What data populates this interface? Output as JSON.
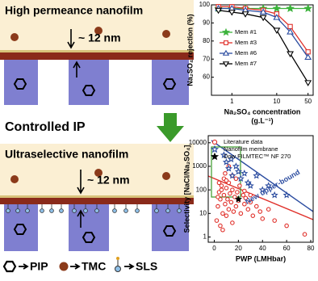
{
  "diagram": {
    "top_title": "High permeance nanofilm",
    "top_thickness": "~ 12 nm",
    "process": "Controlled IP",
    "bottom_title": "Ultraselective nanofilm",
    "bottom_thickness": "~ 12 nm",
    "legend": [
      "PIP",
      "TMC",
      "SLS"
    ]
  },
  "chart_data": [
    {
      "type": "line",
      "x_label": "Na₂SO₄ concentration",
      "x_unit": "(g.L⁻¹)",
      "y_label": "Na₂SO₄ rejection (%)",
      "x": [
        0.5,
        1,
        2,
        5,
        10,
        20,
        50
      ],
      "xscale": "log",
      "xlim": [
        0.35,
        65
      ],
      "xticks": [
        1,
        10,
        50
      ],
      "ylim": [
        50,
        100
      ],
      "yticks": [
        60,
        70,
        80,
        90,
        100
      ],
      "legend": "center left",
      "series": [
        {
          "name": "Mem #1",
          "color": "#3cb33c",
          "marker": "star",
          "filled": true,
          "values": [
            98,
            98,
            98,
            98,
            98,
            98,
            98
          ]
        },
        {
          "name": "Mem #3",
          "color": "#e0302a",
          "marker": "square",
          "filled": false,
          "values": [
            99,
            99,
            98,
            97,
            95,
            88,
            74
          ]
        },
        {
          "name": "Mem #6",
          "color": "#2b4ca0",
          "marker": "triangle",
          "filled": false,
          "values": [
            98,
            98,
            97,
            96,
            93,
            85,
            71
          ]
        },
        {
          "name": "Mem #7",
          "color": "#000000",
          "marker": "triangle-down",
          "filled": false,
          "values": [
            97,
            96,
            95,
            93,
            86,
            73,
            57
          ]
        }
      ]
    },
    {
      "type": "scatter",
      "x_label": "PWP (LMHbar)",
      "y_label": "Selectivity [NaCl/Na₂SO₄]",
      "xlim": [
        -5,
        82
      ],
      "xticks": [
        0,
        20,
        40,
        60,
        80
      ],
      "yscale": "log",
      "ylim": [
        0.6,
        20000
      ],
      "yticks": [
        1,
        10,
        100,
        1000,
        10000
      ],
      "legend": "upper left",
      "annotation": "New upper-bound",
      "series": [
        {
          "name": "Literature data",
          "color": "#e0302a",
          "marker": "circle",
          "filled": false,
          "x": [
            2,
            3,
            4,
            5,
            5,
            6,
            7,
            8,
            8,
            9,
            10,
            10,
            11,
            12,
            12,
            13,
            14,
            15,
            15,
            16,
            17,
            18,
            19,
            20,
            21,
            22,
            24,
            25,
            26,
            28,
            30,
            32,
            35,
            38,
            40,
            45,
            50,
            60,
            75,
            3,
            6,
            9,
            4,
            12,
            18,
            7,
            15,
            25,
            30,
            10
          ],
          "values": [
            5,
            20,
            80,
            3,
            40,
            150,
            10,
            60,
            300,
            25,
            8,
            120,
            40,
            200,
            15,
            70,
            30,
            100,
            400,
            12,
            50,
            20,
            80,
            35,
            150,
            10,
            60,
            25,
            45,
            15,
            30,
            8,
            20,
            12,
            6,
            15,
            5,
            3,
            1.3,
            50,
            100,
            500,
            200,
            1000,
            300,
            2,
            4,
            90,
            60,
            250
          ]
        },
        {
          "name": "Nanofilm membrane",
          "color": "#2b4ca0",
          "marker": "star",
          "filled": false,
          "x": [
            8,
            10,
            12,
            14,
            15,
            18,
            20,
            22,
            25,
            28,
            30,
            35,
            40,
            45,
            50,
            60
          ],
          "values": [
            3000,
            1500,
            800,
            2000,
            400,
            1000,
            600,
            300,
            500,
            200,
            150,
            400,
            100,
            150,
            60,
            60
          ]
        },
        {
          "name": "Dow FILMTEC™ NF 270",
          "color": "#000000",
          "marker": "star",
          "filled": true,
          "x": [
            20
          ],
          "values": [
            40
          ]
        }
      ]
    }
  ]
}
